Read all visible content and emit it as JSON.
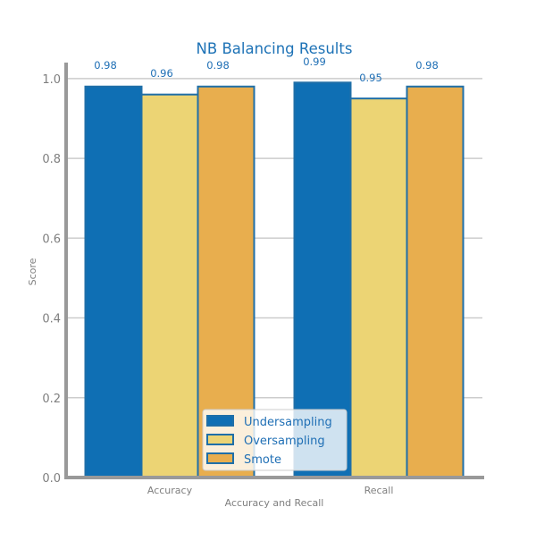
{
  "chart_data": {
    "type": "bar",
    "title": "NB Balancing Results",
    "xlabel": "Accuracy and Recall",
    "ylabel": "Score",
    "categories": [
      "Accuracy",
      "Recall"
    ],
    "ylim": [
      0,
      1.04
    ],
    "yticks": [
      "0.0",
      "0.2",
      "0.4",
      "0.6",
      "0.8",
      "1.0"
    ],
    "grid": "horizontal",
    "legend_position": "bottom-center",
    "series": [
      {
        "name": "Undersampling",
        "values": [
          0.98,
          0.99
        ],
        "labels": [
          "0.98",
          "0.99"
        ],
        "color": "#0f6fb4"
      },
      {
        "name": "Oversampling",
        "values": [
          0.96,
          0.95
        ],
        "labels": [
          "0.96",
          "0.95"
        ],
        "color": "#ecd474"
      },
      {
        "name": "Smote",
        "values": [
          0.98,
          0.98
        ],
        "labels": [
          "0.98",
          "0.98"
        ],
        "color": "#e8ae4e"
      }
    ],
    "colors": {
      "title": "#1d72b6",
      "edge": "#1f6fa8",
      "label": "#1f6fb5",
      "tick": "#7f7f7f",
      "axis": "#999999",
      "grid": "#cccccc"
    }
  }
}
